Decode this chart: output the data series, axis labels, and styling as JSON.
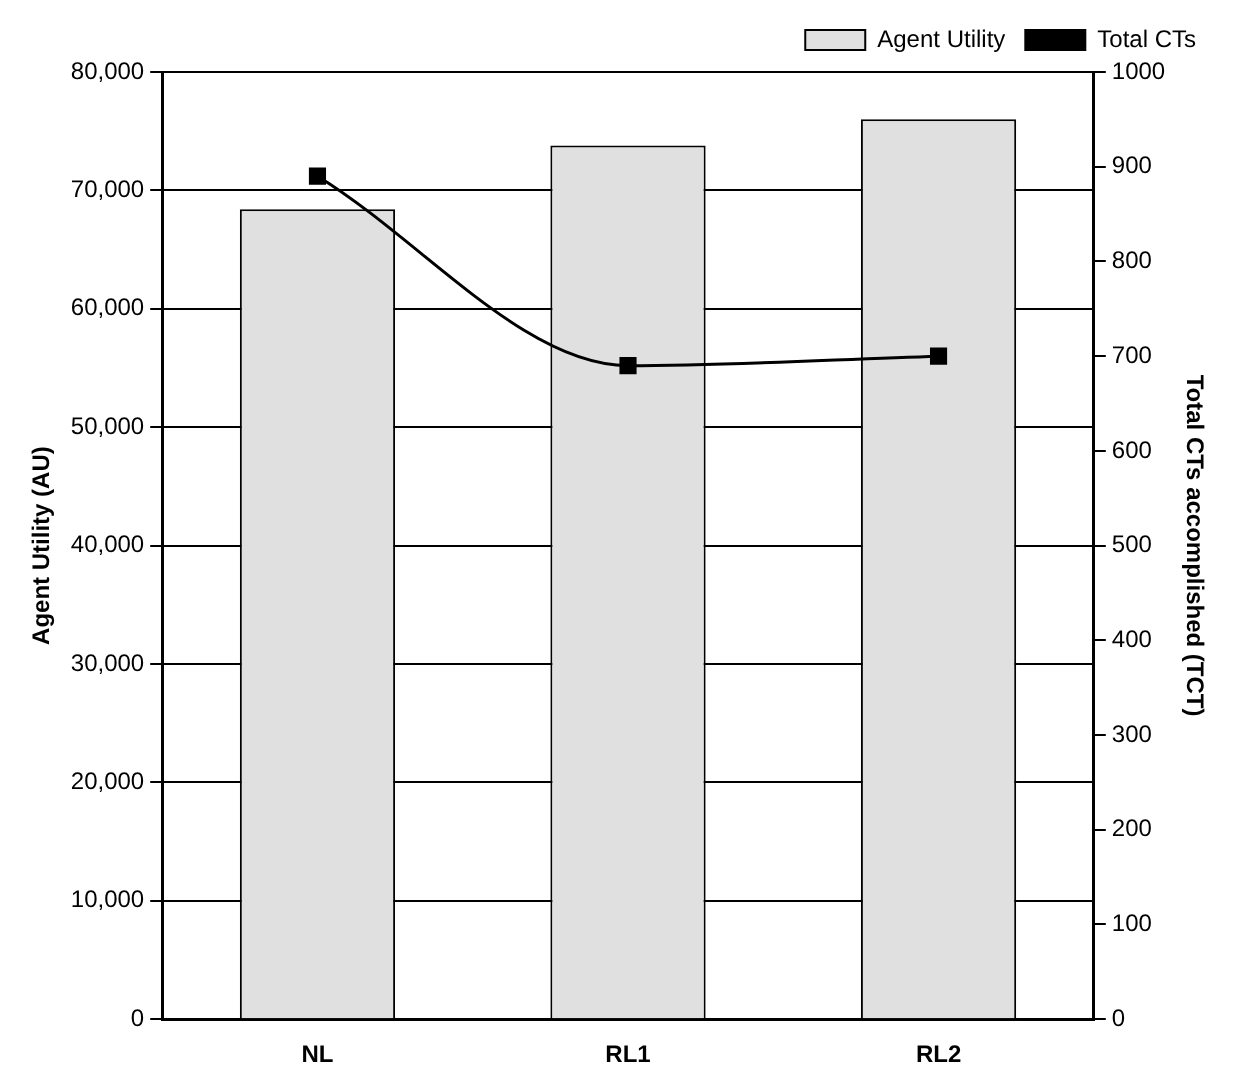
{
  "chart_data": {
    "type": "bar",
    "ylabel": "Agent Utility (AU)",
    "y2label": "Total CTs accomplished (TCT)",
    "categories": [
      "NL",
      "RL1",
      "RL2"
    ],
    "series": [
      {
        "name": "Agent Utility",
        "color": "#e0e0e0",
        "values": [
          68400,
          73800,
          76000
        ]
      },
      {
        "name": "Total CTs",
        "type": "line",
        "axis": "y2",
        "color": "#000000",
        "values": [
          890,
          690,
          700
        ]
      }
    ],
    "ylim": [
      0,
      80000
    ],
    "yticks": [
      {
        "value": 0,
        "label": "0"
      },
      {
        "value": 10000,
        "label": "10,000"
      },
      {
        "value": 20000,
        "label": "20,000"
      },
      {
        "value": 30000,
        "label": "30,000"
      },
      {
        "value": 40000,
        "label": "40,000"
      },
      {
        "value": 50000,
        "label": "50,000"
      },
      {
        "value": 60000,
        "label": "60,000"
      },
      {
        "value": 70000,
        "label": "70,000"
      },
      {
        "value": 80000,
        "label": "80,000"
      }
    ],
    "y2lim": [
      0,
      1000
    ],
    "y2ticks": [
      0,
      100,
      200,
      300,
      400,
      500,
      600,
      700,
      800,
      900,
      1000
    ],
    "grid": "y",
    "legend": "top right",
    "marker": "square",
    "line_style": "solid"
  }
}
